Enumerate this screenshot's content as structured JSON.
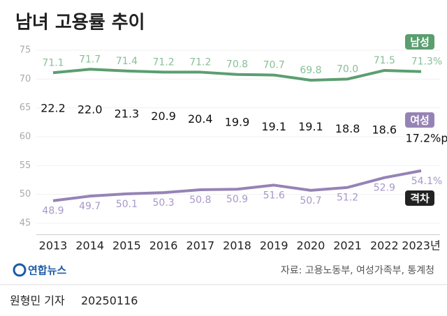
{
  "chart_data": {
    "type": "line",
    "title": "남녀 고용률 추이",
    "categories": [
      "2013",
      "2014",
      "2015",
      "2016",
      "2017",
      "2018",
      "2019",
      "2020",
      "2021",
      "2022",
      "2023년"
    ],
    "series": [
      {
        "name": "남성",
        "color": "#5b9e70",
        "values": [
          71.1,
          71.7,
          71.4,
          71.2,
          71.2,
          70.8,
          70.7,
          69.8,
          70.0,
          71.5,
          71.3
        ],
        "value_labels": [
          "71.1",
          "71.7",
          "71.4",
          "71.2",
          "71.2",
          "70.8",
          "70.7",
          "69.8",
          "70.0",
          "71.5",
          "71.3%"
        ]
      },
      {
        "name": "여성",
        "color": "#9683b5",
        "values": [
          48.9,
          49.7,
          50.1,
          50.3,
          50.8,
          50.9,
          51.6,
          50.7,
          51.2,
          52.9,
          54.1
        ],
        "value_labels": [
          "48.9",
          "49.7",
          "50.1",
          "50.3",
          "50.8",
          "50.9",
          "51.6",
          "50.7",
          "51.2",
          "52.9",
          "54.1%"
        ]
      },
      {
        "name": "격차",
        "color": "#222222",
        "values": [
          22.2,
          22.0,
          21.3,
          20.9,
          20.4,
          19.9,
          19.1,
          19.1,
          18.8,
          18.6,
          17.2
        ],
        "value_labels": [
          "22.2",
          "22.0",
          "21.3",
          "20.9",
          "20.4",
          "19.9",
          "19.1",
          "19.1",
          "18.8",
          "18.6",
          "17.2%p"
        ]
      }
    ],
    "ylim": [
      43,
      77
    ],
    "yticks": [
      45,
      50,
      55,
      60,
      65,
      70,
      75
    ],
    "grid": true,
    "source": "자료: 고용노동부, 여성가족부, 통계청",
    "logo": "연합뉴스",
    "reporter": "원형민 기자",
    "date": "20250116"
  }
}
